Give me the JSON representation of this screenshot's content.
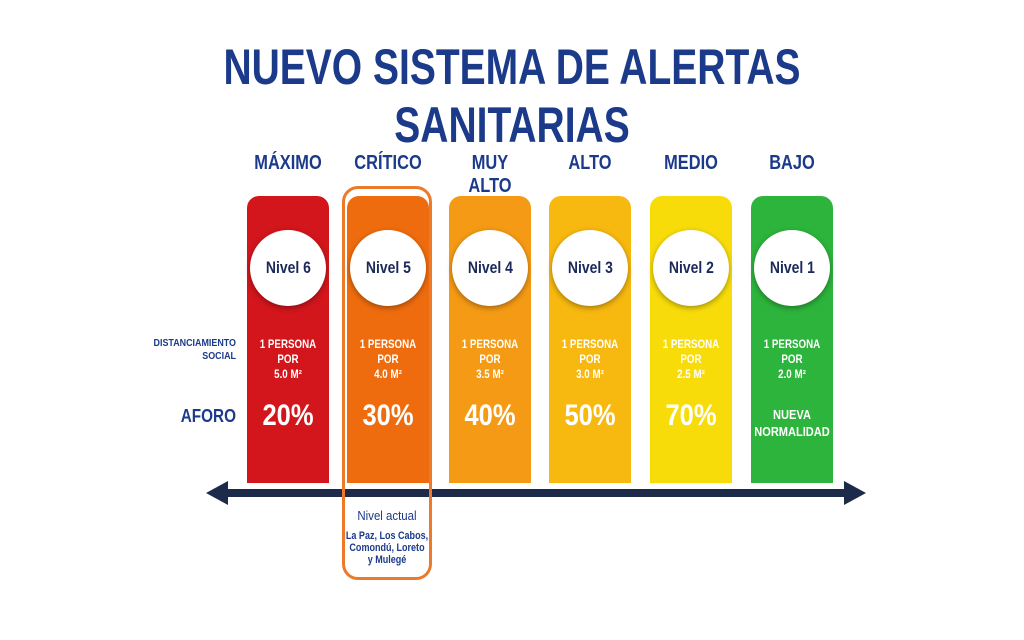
{
  "title": "NUEVO SISTEMA DE ALERTAS SANITARIAS",
  "row_labels": {
    "distanciamiento_line1": "DISTANCIAMIENTO",
    "distanciamiento_line2": "SOCIAL",
    "aforo": "AFORO"
  },
  "levels": [
    {
      "name": "MÁXIMO",
      "badge": "Nivel 6",
      "dist1": "1 PERSONA POR",
      "dist2": "5.0 M²",
      "aforo1": "20%",
      "aforo2": "",
      "color": "#d3151c"
    },
    {
      "name": "CRÍTICO",
      "badge": "Nivel 5",
      "dist1": "1 PERSONA POR",
      "dist2": "4.0 M²",
      "aforo1": "30%",
      "aforo2": "",
      "color": "#ef6c0e"
    },
    {
      "name": "MUY ALTO",
      "badge": "Nivel 4",
      "dist1": "1 PERSONA POR",
      "dist2": "3.5 M²",
      "aforo1": "40%",
      "aforo2": "",
      "color": "#f59a14"
    },
    {
      "name": "ALTO",
      "badge": "Nivel 3",
      "dist1": "1 PERSONA POR",
      "dist2": "3.0 M²",
      "aforo1": "50%",
      "aforo2": "",
      "color": "#f7b80f"
    },
    {
      "name": "MEDIO",
      "badge": "Nivel 2",
      "dist1": "1 PERSONA POR",
      "dist2": "2.5 M²",
      "aforo1": "70%",
      "aforo2": "",
      "color": "#f8dc0a"
    },
    {
      "name": "BAJO",
      "badge": "Nivel 1",
      "dist1": "1 PERSONA POR",
      "dist2": "2.0 M²",
      "aforo1": "NUEVA",
      "aforo2": "NORMALIDAD",
      "color": "#2db43c"
    }
  ],
  "current": {
    "title": "Nivel actual",
    "places_line1": "La Paz, Los Cabos,",
    "places_line2": "Comondú, Loreto",
    "places_line3": "y Mulegé"
  },
  "colors": {
    "title": "#1b3a8a",
    "arrow": "#1c2b4a",
    "highlight_border": "#ec7a2a"
  }
}
